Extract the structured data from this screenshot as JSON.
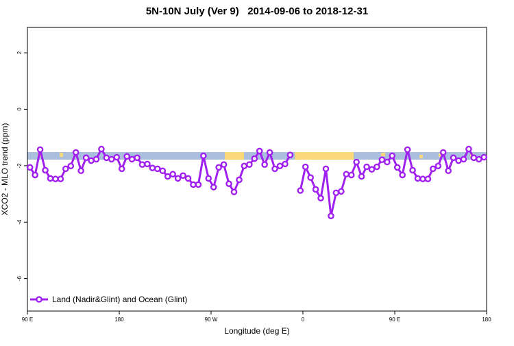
{
  "chart_data": {
    "type": "line",
    "title": "5N-10N July (Ver 9)   2014-09-06 to 2018-12-31",
    "x_label": "Longitude (deg E)",
    "y_label": "XCO2 - MLO trend (ppm)",
    "xlim": [
      90,
      540
    ],
    "xticks": [
      {
        "value": 90,
        "label": "90 E"
      },
      {
        "value": 180,
        "label": "180"
      },
      {
        "value": 270,
        "label": "90 W"
      },
      {
        "value": 360,
        "label": "0"
      },
      {
        "value": 450,
        "label": "90 E"
      },
      {
        "value": 540,
        "label": "180"
      }
    ],
    "ylim": [
      -7.15,
      2.9
    ],
    "yticks": [
      -6,
      -4,
      -2,
      0,
      2
    ],
    "legend_position": "bottom-left",
    "x": [
      92.5,
      97.5,
      102.5,
      107.5,
      112.5,
      117.5,
      122.5,
      127.5,
      132.5,
      137.5,
      142.5,
      147.5,
      152.5,
      157.5,
      162.5,
      167.5,
      172.5,
      177.5,
      182.5,
      187.5,
      192.5,
      197.5,
      202.5,
      207.5,
      212.5,
      217.5,
      222.5,
      227.5,
      232.5,
      237.5,
      242.5,
      247.5,
      252.5,
      257.5,
      262.5,
      267.5,
      272.5,
      277.5,
      282.5,
      287.5,
      292.5,
      297.5,
      302.5,
      307.5,
      312.5,
      317.5,
      322.5,
      327.5,
      332.5,
      337.5,
      342.5,
      347.5,
      352.5,
      357.5,
      362.5,
      367.5,
      372.5,
      377.5,
      382.5,
      387.5,
      392.5,
      397.5,
      402.5,
      407.5,
      412.5,
      417.5,
      422.5,
      427.5,
      432.5,
      437.5,
      442.5,
      447.5,
      452.5,
      457.5,
      462.5,
      467.5,
      472.5,
      477.5,
      482.5,
      487.5,
      492.5,
      497.5,
      502.5,
      507.5,
      512.5,
      517.5,
      522.5,
      527.5,
      532.5,
      537.5
    ],
    "series": [
      {
        "name": "Land (Nadir&Glint) and Ocean (Glint)",
        "color": "#a020f0",
        "values": [
          -2.06,
          -2.33,
          -1.43,
          -2.16,
          -2.45,
          -2.47,
          -2.47,
          -2.11,
          -2.01,
          -1.53,
          -2.18,
          -1.72,
          -1.82,
          -1.77,
          -1.41,
          -1.72,
          -1.77,
          -1.7,
          -2.11,
          -1.67,
          -1.77,
          -1.72,
          -1.96,
          -1.94,
          -2.08,
          -2.11,
          -2.18,
          -2.38,
          -2.3,
          -2.45,
          -2.35,
          -2.45,
          -2.67,
          -2.67,
          -1.65,
          -2.45,
          -2.76,
          -2.06,
          -1.96,
          -2.64,
          -2.93,
          -2.5,
          -2.01,
          -1.96,
          -1.75,
          -1.48,
          -1.96,
          -1.53,
          -2.11,
          -2.01,
          -1.94,
          -1.62,
          null,
          -2.88,
          -2.04,
          -2.42,
          -2.84,
          -3.15,
          -2.11,
          -3.78,
          -2.96,
          -2.91,
          -2.3,
          -2.33,
          -1.87,
          -2.38,
          -2.04,
          -2.13,
          -2.04,
          -1.79,
          -1.87,
          -1.65,
          -2.06,
          -2.33,
          -1.43,
          -2.16,
          -2.45,
          -2.47,
          -2.47,
          -2.11,
          -2.01,
          -1.53,
          -2.18,
          -1.72,
          -1.82,
          -1.77,
          -1.41,
          -1.72,
          -1.77,
          -1.7
        ]
      }
    ]
  }
}
